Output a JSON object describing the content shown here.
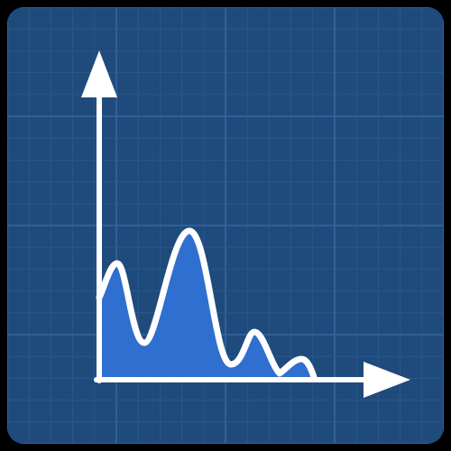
{
  "icon": {
    "name": "chart-blueprint-icon",
    "colors": {
      "outer_background": "#000000",
      "panel": "#1F4A7C",
      "grid_minor": "#2A5A8E",
      "grid_major": "#3467A0",
      "axis": "#FFFFFF",
      "area_fill": "#2F6FD0",
      "curve_stroke": "#FFFFFF"
    }
  }
}
